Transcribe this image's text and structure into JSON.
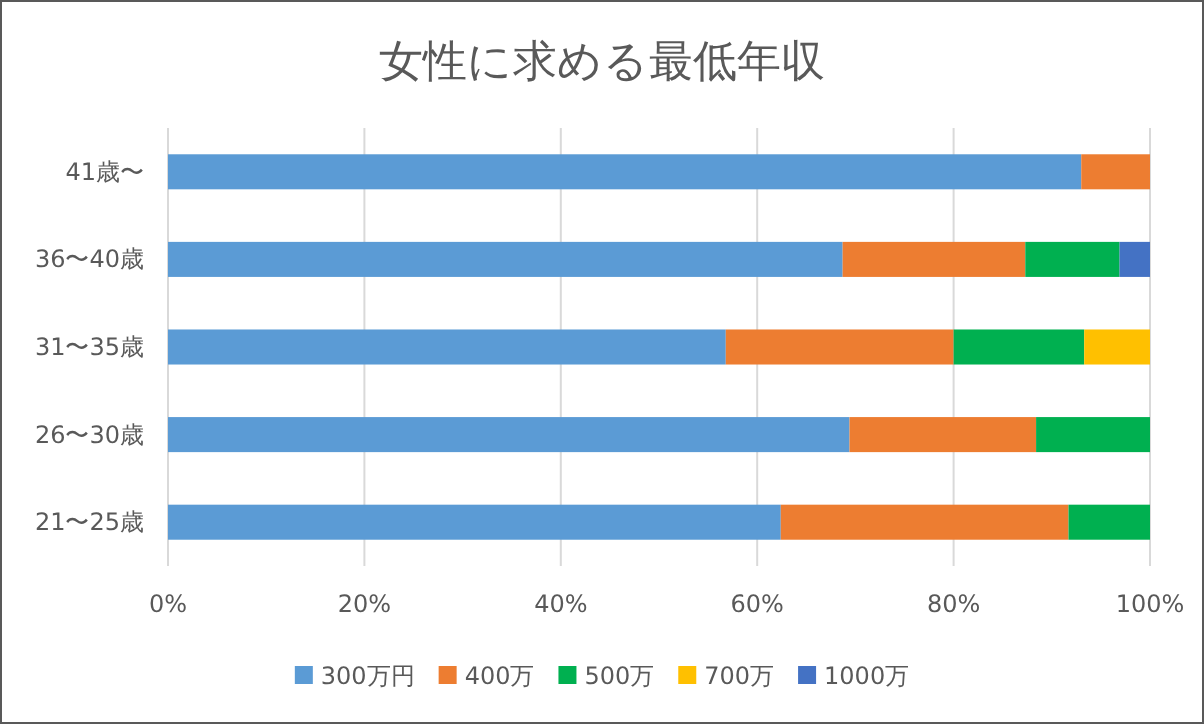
{
  "chart_data": {
    "type": "bar",
    "title": "女性に求める最低年収",
    "orientation": "horizontal",
    "stacked": true,
    "categories": [
      "41歳〜",
      "36〜40歳",
      "31〜35歳",
      "26〜30歳",
      "21〜25歳"
    ],
    "series": [
      {
        "name": "300万円",
        "color": "#5b9bd5",
        "values": [
          93.0,
          68.7,
          56.8,
          69.4,
          62.4
        ]
      },
      {
        "name": "400万",
        "color": "#ed7d31",
        "values": [
          7.0,
          18.6,
          23.2,
          19.0,
          29.3
        ]
      },
      {
        "name": "500万",
        "color": "#00b050",
        "values": [
          null,
          9.6,
          13.3,
          11.6,
          8.3
        ]
      },
      {
        "name": "700万",
        "color": "#ffc000",
        "values": [
          null,
          null,
          6.7,
          null,
          null
        ]
      },
      {
        "name": "1000万",
        "color": "#4472c4",
        "values": [
          null,
          3.1,
          null,
          null,
          null
        ]
      }
    ],
    "xlim": [
      0,
      100
    ],
    "xticks": [
      {
        "value": 0,
        "label": "0%"
      },
      {
        "value": 20,
        "label": "20%"
      },
      {
        "value": 40,
        "label": "40%"
      },
      {
        "value": 60,
        "label": "60%"
      },
      {
        "value": 80,
        "label": "80%"
      },
      {
        "value": 100,
        "label": "100%"
      }
    ],
    "grid": "x",
    "legend": "bottom"
  }
}
